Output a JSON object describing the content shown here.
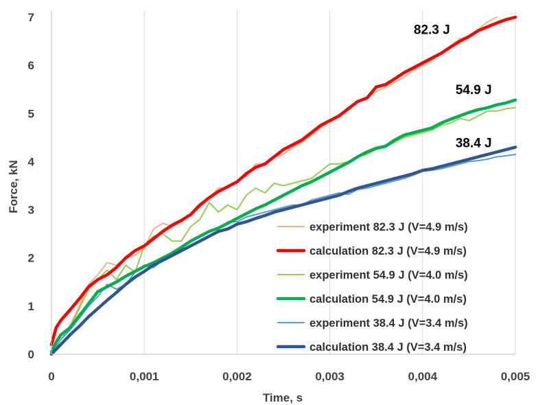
{
  "chart_data": {
    "type": "line",
    "title": "",
    "xlabel": "Time, s",
    "ylabel": "Force, kN",
    "xlim": [
      0,
      0.005
    ],
    "ylim": [
      0,
      7
    ],
    "x_ticks": [
      0,
      0.001,
      0.002,
      0.003,
      0.004,
      0.005
    ],
    "x_tick_labels": [
      "0",
      "0,001",
      "0,002",
      "0,003",
      "0,004",
      "0,005"
    ],
    "y_ticks": [
      0,
      1,
      2,
      3,
      4,
      5,
      6,
      7
    ],
    "y_tick_labels": [
      "0",
      "1",
      "2",
      "3",
      "4",
      "5",
      "6",
      "7"
    ],
    "grid": "vertical",
    "legend_position": "bottom-right",
    "annotations": [
      {
        "text": "82.3 J",
        "x": 0.0041,
        "y": 6.65
      },
      {
        "text": "54.9 J",
        "x": 0.00455,
        "y": 5.4
      },
      {
        "text": "38.4 J",
        "x": 0.00455,
        "y": 4.3
      }
    ],
    "series": [
      {
        "name": "experiment 82.3 J (V=4.9 m/s)",
        "color": "#F4B183",
        "style": "experiment",
        "x": [
          0,
          0.0001,
          0.0002,
          0.0003,
          0.0004,
          0.0005,
          0.0006,
          0.0007,
          0.0008,
          0.0009,
          0.001,
          0.0011,
          0.0012,
          0.0013,
          0.0014,
          0.0015,
          0.0016,
          0.0017,
          0.0018,
          0.0019,
          0.002,
          0.0021,
          0.0022,
          0.0023,
          0.0024,
          0.0025,
          0.0026,
          0.0027,
          0.0028,
          0.0029,
          0.003,
          0.0031,
          0.0032,
          0.0033,
          0.0034,
          0.0035,
          0.0036,
          0.0037,
          0.0038,
          0.0039,
          0.004,
          0.0041,
          0.0042,
          0.0043,
          0.0044,
          0.0045,
          0.0046,
          0.0047,
          0.0048
        ],
        "y": [
          0,
          0.3,
          0.6,
          1.0,
          1.45,
          1.65,
          1.9,
          1.85,
          2.0,
          2.05,
          2.2,
          2.6,
          2.72,
          2.65,
          2.75,
          2.9,
          3.05,
          3.25,
          3.45,
          3.45,
          3.6,
          3.7,
          3.95,
          3.95,
          4.1,
          4.15,
          4.3,
          4.4,
          4.55,
          4.7,
          4.85,
          4.95,
          5.1,
          5.25,
          5.35,
          5.45,
          5.55,
          5.65,
          5.75,
          5.9,
          6.0,
          6.1,
          6.25,
          6.4,
          6.55,
          6.6,
          6.75,
          6.9,
          7.0
        ]
      },
      {
        "name": "calculation 82.3 J (V=4.9 m/s)",
        "color": "#FF0000",
        "style": "calculation",
        "x": [
          0,
          5e-05,
          0.0001,
          0.0002,
          0.0003,
          0.0004,
          0.0005,
          0.0006,
          0.0007,
          0.0008,
          0.0009,
          0.001,
          0.0011,
          0.0012,
          0.0013,
          0.0014,
          0.0015,
          0.0016,
          0.0017,
          0.0018,
          0.0019,
          0.002,
          0.0021,
          0.0022,
          0.0023,
          0.0024,
          0.0025,
          0.0026,
          0.0027,
          0.0028,
          0.0029,
          0.003,
          0.0031,
          0.0032,
          0.0033,
          0.0034,
          0.0035,
          0.0036,
          0.0037,
          0.0038,
          0.0039,
          0.004,
          0.0041,
          0.0042,
          0.0043,
          0.0044,
          0.0045,
          0.0046,
          0.0047,
          0.0048,
          0.0049,
          0.005
        ],
        "y": [
          0.2,
          0.55,
          0.7,
          0.92,
          1.15,
          1.4,
          1.55,
          1.65,
          1.8,
          2.0,
          2.15,
          2.25,
          2.4,
          2.55,
          2.68,
          2.78,
          2.9,
          3.1,
          3.25,
          3.38,
          3.48,
          3.58,
          3.75,
          3.88,
          3.95,
          4.1,
          4.25,
          4.35,
          4.45,
          4.6,
          4.75,
          4.85,
          4.95,
          5.1,
          5.25,
          5.32,
          5.55,
          5.6,
          5.72,
          5.85,
          5.95,
          6.05,
          6.15,
          6.25,
          6.38,
          6.5,
          6.6,
          6.72,
          6.8,
          6.88,
          6.95,
          7.0
        ]
      },
      {
        "name": "experiment 54.9 J (V=4.0 m/s)",
        "color": "#92D050",
        "style": "experiment",
        "x": [
          0,
          0.0001,
          0.0002,
          0.0003,
          0.0004,
          0.0005,
          0.0006,
          0.0007,
          0.0008,
          0.0009,
          0.001,
          0.0011,
          0.0012,
          0.0013,
          0.0014,
          0.0015,
          0.0016,
          0.0017,
          0.0018,
          0.0019,
          0.002,
          0.0021,
          0.0022,
          0.0023,
          0.0024,
          0.0025,
          0.0026,
          0.0027,
          0.0028,
          0.0029,
          0.003,
          0.0031,
          0.0032,
          0.0033,
          0.0034,
          0.0035,
          0.0036,
          0.0037,
          0.0038,
          0.0039,
          0.004,
          0.0041,
          0.0042,
          0.0043,
          0.0044,
          0.0045,
          0.0046,
          0.0047,
          0.0048,
          0.0049,
          0.005
        ],
        "y": [
          0,
          0.3,
          0.55,
          0.95,
          1.35,
          1.55,
          1.75,
          1.55,
          1.85,
          1.7,
          2.25,
          2.45,
          2.5,
          2.35,
          2.35,
          2.65,
          2.8,
          3.15,
          2.95,
          3.1,
          3.0,
          3.3,
          3.45,
          3.35,
          3.55,
          3.5,
          3.55,
          3.6,
          3.65,
          3.8,
          3.95,
          3.95,
          4.0,
          4.1,
          4.15,
          4.25,
          4.3,
          4.4,
          4.5,
          4.55,
          4.6,
          4.65,
          4.75,
          4.8,
          4.9,
          4.85,
          4.95,
          5.05,
          5.05,
          5.1,
          5.12
        ]
      },
      {
        "name": "calculation 54.9 J (V=4.0 m/s)",
        "color": "#00B050",
        "style": "calculation",
        "x": [
          0,
          5e-05,
          0.0001,
          0.0002,
          0.0003,
          0.0004,
          0.0005,
          0.0006,
          0.0007,
          0.0008,
          0.0009,
          0.001,
          0.0011,
          0.0012,
          0.0013,
          0.0014,
          0.0015,
          0.0016,
          0.0017,
          0.0018,
          0.0019,
          0.002,
          0.0021,
          0.0022,
          0.0023,
          0.0024,
          0.0025,
          0.0026,
          0.0027,
          0.0028,
          0.0029,
          0.003,
          0.0031,
          0.0032,
          0.0033,
          0.0034,
          0.0035,
          0.0036,
          0.0037,
          0.0038,
          0.0039,
          0.004,
          0.0041,
          0.0042,
          0.0043,
          0.0044,
          0.0045,
          0.0046,
          0.0047,
          0.0048,
          0.0049,
          0.005
        ],
        "y": [
          0.05,
          0.25,
          0.4,
          0.55,
          0.8,
          1.05,
          1.3,
          1.4,
          1.5,
          1.62,
          1.72,
          1.82,
          1.9,
          2.0,
          2.1,
          2.22,
          2.35,
          2.45,
          2.55,
          2.62,
          2.72,
          2.82,
          2.92,
          3.02,
          3.1,
          3.2,
          3.3,
          3.4,
          3.5,
          3.58,
          3.68,
          3.78,
          3.88,
          3.98,
          4.1,
          4.2,
          4.28,
          4.32,
          4.45,
          4.55,
          4.6,
          4.65,
          4.7,
          4.8,
          4.88,
          4.95,
          5.02,
          5.08,
          5.12,
          5.18,
          5.22,
          5.28
        ]
      },
      {
        "name": "experiment 38.4 J (V=3.4 m/s)",
        "color": "#5B9BD5",
        "style": "experiment",
        "x": [
          0,
          0.0001,
          0.0002,
          0.0003,
          0.0004,
          0.0005,
          0.0006,
          0.0007,
          0.0008,
          0.0009,
          0.001,
          0.0011,
          0.0012,
          0.0013,
          0.0014,
          0.0015,
          0.0016,
          0.0017,
          0.0018,
          0.0019,
          0.002,
          0.0021,
          0.0022,
          0.0023,
          0.0024,
          0.0025,
          0.0026,
          0.0027,
          0.0028,
          0.0029,
          0.003,
          0.0031,
          0.0032,
          0.0033,
          0.0034,
          0.0035,
          0.0036,
          0.0037,
          0.0038,
          0.0039,
          0.004,
          0.0041,
          0.0042,
          0.0043,
          0.0044,
          0.0045,
          0.0046,
          0.0047,
          0.0048,
          0.0049,
          0.005
        ],
        "y": [
          0,
          0.3,
          0.5,
          0.75,
          1.0,
          1.2,
          1.45,
          1.35,
          1.45,
          1.7,
          1.85,
          1.8,
          1.95,
          2.05,
          2.2,
          2.35,
          2.45,
          2.55,
          2.6,
          2.75,
          2.75,
          2.85,
          2.9,
          2.95,
          3.0,
          3.05,
          3.1,
          3.1,
          3.2,
          3.25,
          3.3,
          3.35,
          3.32,
          3.42,
          3.45,
          3.5,
          3.55,
          3.6,
          3.65,
          3.72,
          3.8,
          3.82,
          3.85,
          3.9,
          3.95,
          4.0,
          4.02,
          4.05,
          4.1,
          4.12,
          4.15
        ]
      },
      {
        "name": "calculation 38.4 J (V=3.4 m/s)",
        "color": "#2F5597",
        "style": "calculation",
        "x": [
          0,
          0.0001,
          0.0002,
          0.0003,
          0.0004,
          0.0005,
          0.0006,
          0.0007,
          0.0008,
          0.0009,
          0.001,
          0.0011,
          0.0012,
          0.0013,
          0.0014,
          0.0015,
          0.0016,
          0.0017,
          0.0018,
          0.0019,
          0.002,
          0.0021,
          0.0022,
          0.0023,
          0.0024,
          0.0025,
          0.0026,
          0.0027,
          0.0028,
          0.0029,
          0.003,
          0.0031,
          0.0032,
          0.0033,
          0.0034,
          0.0035,
          0.0036,
          0.0037,
          0.0038,
          0.0039,
          0.004,
          0.0041,
          0.0042,
          0.0043,
          0.0044,
          0.0045,
          0.0046,
          0.0047,
          0.0048,
          0.0049,
          0.005
        ],
        "y": [
          0,
          0.2,
          0.4,
          0.58,
          0.78,
          0.95,
          1.12,
          1.28,
          1.45,
          1.6,
          1.72,
          1.85,
          1.95,
          2.05,
          2.15,
          2.25,
          2.35,
          2.45,
          2.55,
          2.6,
          2.7,
          2.75,
          2.82,
          2.88,
          2.95,
          3.0,
          3.05,
          3.1,
          3.15,
          3.2,
          3.25,
          3.3,
          3.38,
          3.45,
          3.5,
          3.55,
          3.6,
          3.65,
          3.7,
          3.75,
          3.82,
          3.85,
          3.9,
          3.95,
          4.0,
          4.05,
          4.1,
          4.15,
          4.2,
          4.25,
          4.3
        ]
      }
    ]
  }
}
